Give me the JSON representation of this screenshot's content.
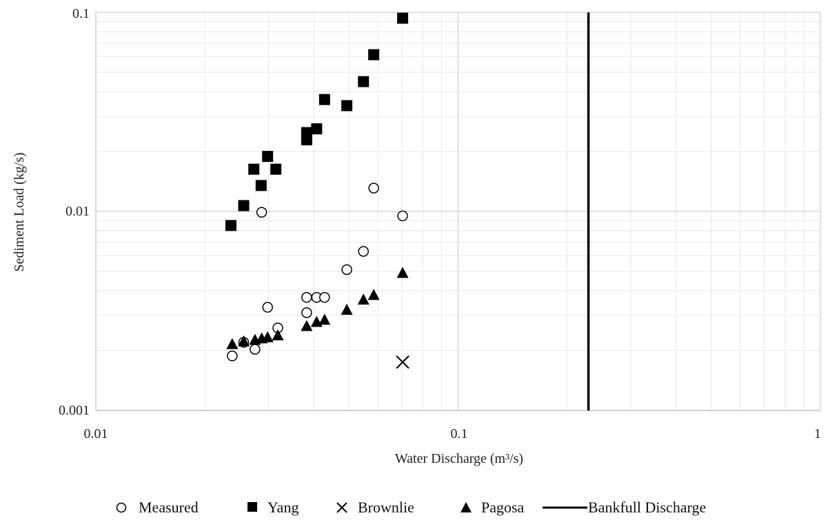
{
  "chart_data": {
    "type": "scatter",
    "xscale": "log",
    "yscale": "log",
    "xlim": [
      0.01,
      1
    ],
    "ylim": [
      0.001,
      0.1
    ],
    "xlabel": "Water Discharge (m³/s)",
    "ylabel": "Sediment Load (kg/s)",
    "x_ticks": [
      "0.01",
      "0.1",
      "1"
    ],
    "y_ticks": [
      "0.001",
      "0.01",
      "0.1"
    ],
    "grid": true,
    "legend_position": "bottom",
    "series": [
      {
        "name": "Measured",
        "marker": "circle-open",
        "color": "#000000",
        "points": [
          [
            0.0238,
            0.00188
          ],
          [
            0.0256,
            0.0022
          ],
          [
            0.0275,
            0.00203
          ],
          [
            0.0287,
            0.0099
          ],
          [
            0.0298,
            0.0033
          ],
          [
            0.0318,
            0.0026
          ],
          [
            0.0382,
            0.0037
          ],
          [
            0.0382,
            0.0031
          ],
          [
            0.0407,
            0.0037
          ],
          [
            0.0428,
            0.0037
          ],
          [
            0.0493,
            0.0051
          ],
          [
            0.0548,
            0.0063
          ],
          [
            0.0585,
            0.0131
          ],
          [
            0.0703,
            0.0095
          ]
        ]
      },
      {
        "name": "Yang",
        "marker": "square-filled",
        "color": "#000000",
        "points": [
          [
            0.0236,
            0.0085
          ],
          [
            0.0256,
            0.0107
          ],
          [
            0.0273,
            0.0163
          ],
          [
            0.0286,
            0.0135
          ],
          [
            0.0298,
            0.0189
          ],
          [
            0.0314,
            0.0163
          ],
          [
            0.0382,
            0.0249
          ],
          [
            0.0382,
            0.0229
          ],
          [
            0.0407,
            0.026
          ],
          [
            0.0428,
            0.0365
          ],
          [
            0.0493,
            0.034
          ],
          [
            0.0548,
            0.0449
          ],
          [
            0.0585,
            0.0613
          ],
          [
            0.0703,
            0.0935
          ]
        ]
      },
      {
        "name": "Brownlie",
        "marker": "x",
        "color": "#000000",
        "points": [
          [
            0.0703,
            0.00175
          ]
        ]
      },
      {
        "name": "Pagosa",
        "marker": "triangle-filled",
        "color": "#000000",
        "points": [
          [
            0.0238,
            0.00215
          ],
          [
            0.0256,
            0.00222
          ],
          [
            0.0275,
            0.00226
          ],
          [
            0.0287,
            0.0023
          ],
          [
            0.0298,
            0.00233
          ],
          [
            0.0318,
            0.00238
          ],
          [
            0.0382,
            0.00265
          ],
          [
            0.0407,
            0.00278
          ],
          [
            0.0428,
            0.00285
          ],
          [
            0.0493,
            0.0032
          ],
          [
            0.0548,
            0.0036
          ],
          [
            0.0585,
            0.0038
          ],
          [
            0.0703,
            0.0049
          ]
        ]
      },
      {
        "name": "Bankfull Discharge",
        "marker": "vertical-line",
        "color": "#000000",
        "x": 0.229
      }
    ]
  }
}
